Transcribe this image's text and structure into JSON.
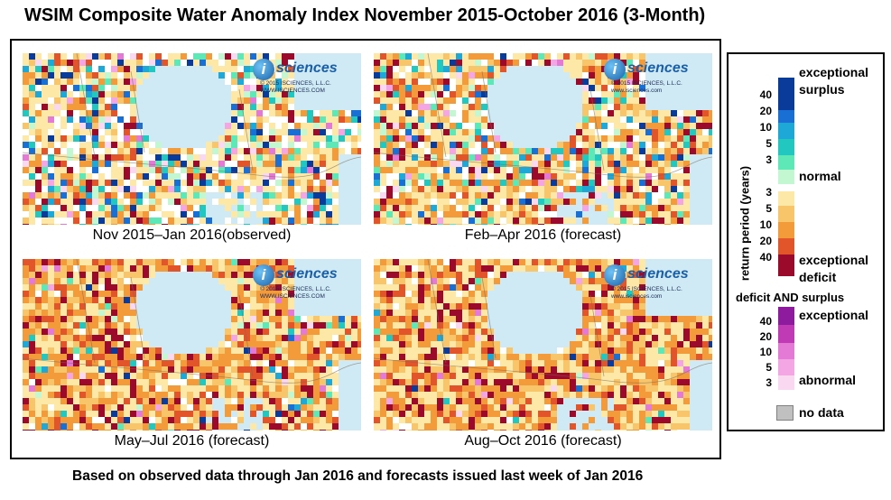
{
  "title": "WSIM Composite Water Anomaly Index November 2015-October 2016 (3-Month)",
  "footer": "Based on observed data through Jan 2016 and forecasts issued last week of Jan 2016",
  "badge": {
    "logo_letter": "i",
    "logo_text": "sciences",
    "copyright_1": "© 2015 ISCIENCES, L.L.C.",
    "url_1": "WWW.ISCIENCES.COM",
    "copyright_2": "© 2015 ISCIENCES, L.L.C.",
    "url_2": "www.isciences.com"
  },
  "panels": [
    {
      "caption": "Nov 2015–Jan 2016(observed)",
      "seed": 11,
      "wet": 0.42,
      "dry": 0.3
    },
    {
      "caption": "Feb–Apr 2016 (forecast)",
      "seed": 23,
      "wet": 0.3,
      "dry": 0.48
    },
    {
      "caption": "May–Jul 2016 (forecast)",
      "seed": 37,
      "wet": 0.1,
      "dry": 0.75
    },
    {
      "caption": "Aug–Oct 2016 (forecast)",
      "seed": 51,
      "wet": 0.05,
      "dry": 0.8
    }
  ],
  "legend": {
    "axis_label": "return period (years)",
    "surplus_ticks": [
      "40",
      "20",
      "10",
      "5",
      "3"
    ],
    "deficit_ticks": [
      "3",
      "5",
      "10",
      "20",
      "40"
    ],
    "both_ticks": [
      "40",
      "20",
      "10",
      "5",
      "3"
    ],
    "exceptional_surplus_1": "exceptional",
    "exceptional_surplus_2": "surplus",
    "normal": "normal",
    "exceptional_deficit_1": "exceptional",
    "exceptional_deficit_2": "deficit",
    "both_title": "deficit AND surplus",
    "both_exceptional": "exceptional",
    "both_abnormal": "abnormal",
    "no_data": "no data",
    "colors": {
      "surplus": [
        "#0a3a9a",
        "#1a6fd4",
        "#1ea8d8",
        "#22c8c0",
        "#5ee8b8",
        "#c2f7d2"
      ],
      "normal": "#ffffff",
      "deficit": [
        "#fde8a8",
        "#f9c56a",
        "#f39a3a",
        "#e2542a",
        "#9b0a2a"
      ],
      "both": [
        "#8e1a9e",
        "#c03ab6",
        "#e47ad6",
        "#f3a6e3",
        "#fbd8f1"
      ],
      "water": "#cfeaf4",
      "no_data": "#c0c0c0"
    }
  }
}
